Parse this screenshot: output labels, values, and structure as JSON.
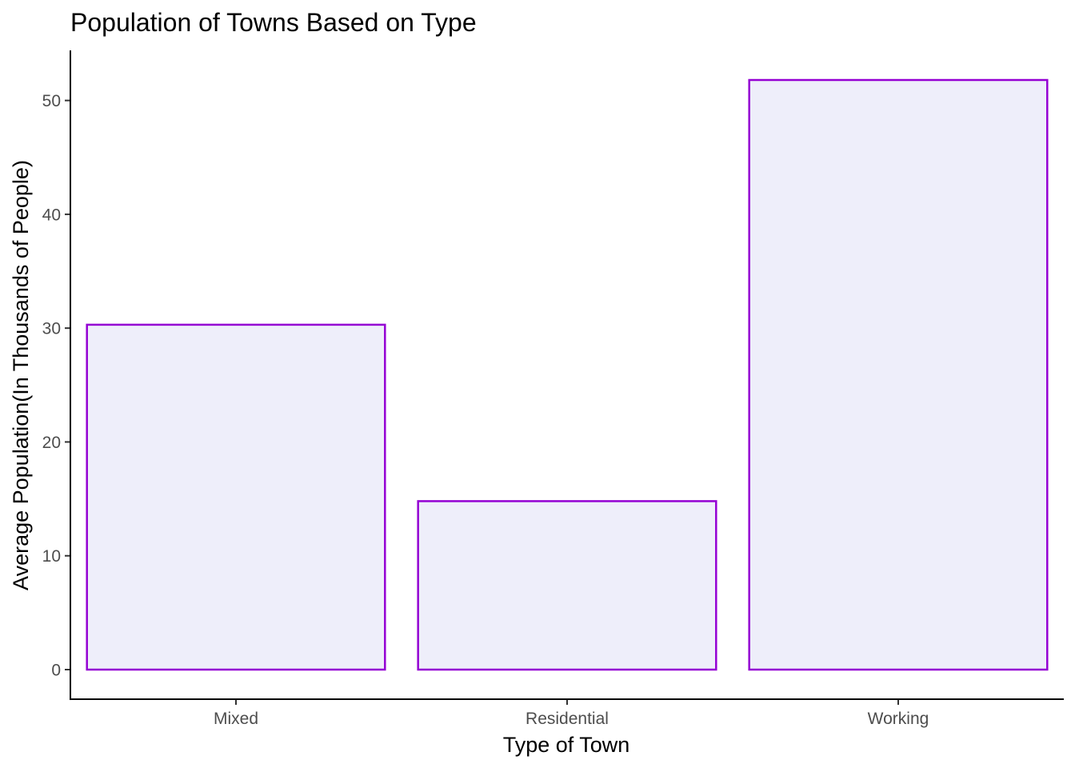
{
  "chart_data": {
    "type": "bar",
    "title": "Population of Towns Based on Type",
    "xlabel": "Type of Town",
    "ylabel": "Average Population(In Thousands of People)",
    "categories": [
      "Mixed",
      "Residential",
      "Working"
    ],
    "values": [
      30.3,
      14.8,
      51.8
    ],
    "ylim": [
      -2.6,
      54.4
    ],
    "yticks": [
      0,
      10,
      20,
      30,
      40,
      50
    ],
    "grid": false,
    "legend": "none",
    "colors": {
      "bar_fill": "#eeeefa",
      "bar_stroke": "#9400d3",
      "axis": "#000000",
      "tick_text": "#4d4d4d"
    }
  }
}
